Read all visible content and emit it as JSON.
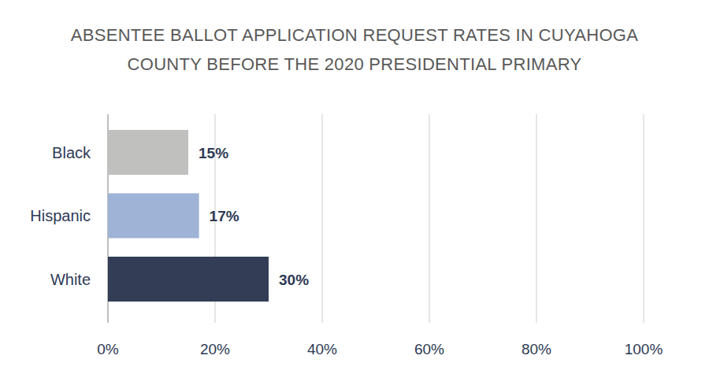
{
  "chart_data": {
    "type": "bar",
    "title": "ABSENTEE BALLOT APPLICATION REQUEST RATES IN CUYAHOGA COUNTY BEFORE THE 2020 PRESIDENTIAL PRIMARY",
    "orientation": "horizontal",
    "categories": [
      "Black",
      "Hispanic",
      "White"
    ],
    "values": [
      15,
      17,
      30
    ],
    "value_labels": [
      "15%",
      "17%",
      "30%"
    ],
    "colors": [
      "#c0c1bf",
      "#9fb3d6",
      "#333e56"
    ],
    "xlim": [
      0,
      100
    ],
    "xticks": [
      {
        "value": 0,
        "label": "0%"
      },
      {
        "value": 20,
        "label": "20%"
      },
      {
        "value": 40,
        "label": "40%"
      },
      {
        "value": 60,
        "label": "60%"
      },
      {
        "value": 80,
        "label": "80%"
      },
      {
        "value": 100,
        "label": "100%"
      }
    ],
    "grid": true,
    "data_labels": true
  }
}
